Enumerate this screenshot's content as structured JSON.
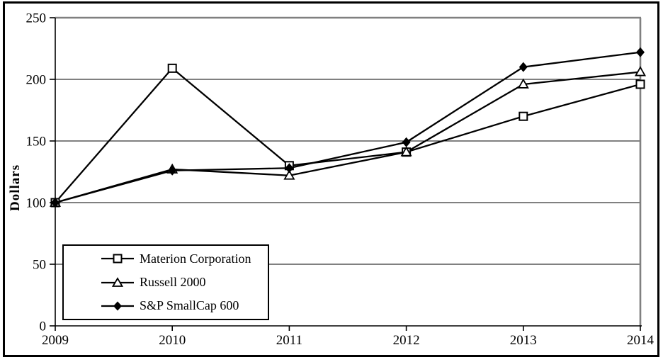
{
  "chart_data": {
    "type": "line",
    "ylabel": "Dollars",
    "x_categories": [
      "2009",
      "2010",
      "2011",
      "2012",
      "2013",
      "2014"
    ],
    "y_ticks": [
      0,
      50,
      100,
      150,
      200,
      250
    ],
    "ylim": [
      0,
      250
    ],
    "grid": "horizontal",
    "legend_position": "inside-bottom-left",
    "series": [
      {
        "name": "Materion Corporation",
        "marker": "open-square",
        "color": "#000000",
        "values": [
          100,
          209,
          130,
          141,
          170,
          196
        ]
      },
      {
        "name": "Russell 2000",
        "marker": "open-triangle",
        "color": "#000000",
        "values": [
          100,
          127,
          122,
          141,
          196,
          206
        ]
      },
      {
        "name": "S&P SmallCap 600",
        "marker": "filled-diamond",
        "color": "#000000",
        "values": [
          100,
          126,
          128,
          149,
          210,
          222
        ]
      }
    ],
    "colors": {
      "line": "#000000",
      "grid": "#000000",
      "axis": "#000000",
      "top_border": "#808080",
      "right_border": "#808080",
      "background": "#ffffff",
      "frame_border": "#000000",
      "text": "#000000"
    }
  }
}
